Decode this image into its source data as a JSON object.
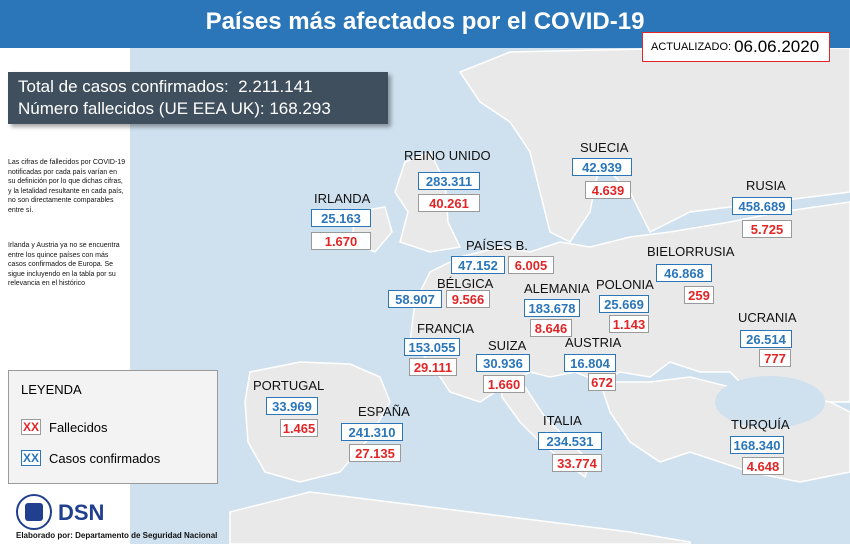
{
  "header": {
    "title": "Países más afectados por el COVID-19",
    "updated_label": "ACTUALIZADO:",
    "updated_date": "06.06.2020"
  },
  "totals": {
    "confirmed_label": "Total de casos confirmados:",
    "confirmed_value": "2.211.141",
    "deaths_label": "Número fallecidos (UE EEA UK):",
    "deaths_value": "168.293"
  },
  "notes": {
    "note1": "Las cifras de fallecidos por COVID-19 notificadas por cada país varían en su definición por lo que dichas cifras, y la letalidad resultante en cada país, no son directamente comparables entre sí.",
    "note2": "Irlanda y Austria ya no se encuentra entre los quince países con más casos confirmados de Europa. Se sigue incluyendo en la tabla por su relevancia en el histórico"
  },
  "legend": {
    "title": "LEYENDA",
    "marker": "XX",
    "deaths_label": "Fallecidos",
    "confirmed_label": "Casos confirmados",
    "colors": {
      "deaths": "#e22526",
      "confirmed": "#2a76b9"
    }
  },
  "countries": {
    "reino_unido": {
      "name": "REINO UNIDO",
      "confirmed": "283.311",
      "deaths": "40.261"
    },
    "irlanda": {
      "name": "IRLANDA",
      "confirmed": "25.163",
      "deaths": "1.670"
    },
    "suecia": {
      "name": "SUECIA",
      "confirmed": "42.939",
      "deaths": "4.639"
    },
    "rusia": {
      "name": "RUSIA",
      "confirmed": "458.689",
      "deaths": "5.725"
    },
    "paises_bajos": {
      "name": "PAÍSES B.",
      "confirmed": "47.152",
      "deaths": "6.005"
    },
    "bielorrusia": {
      "name": "BIELORRUSIA",
      "confirmed": "46.868",
      "deaths": "259"
    },
    "belgica": {
      "name": "BÉLGICA",
      "confirmed": "58.907",
      "deaths": "9.566"
    },
    "alemania": {
      "name": "ALEMANIA",
      "confirmed": "183.678",
      "deaths": "8.646"
    },
    "polonia": {
      "name": "POLONIA",
      "confirmed": "25.669",
      "deaths": "1.143"
    },
    "francia": {
      "name": "FRANCIA",
      "confirmed": "153.055",
      "deaths": "29.111"
    },
    "ucrania": {
      "name": "UCRANIA",
      "confirmed": "26.514",
      "deaths": "777"
    },
    "suiza": {
      "name": "SUIZA",
      "confirmed": "30.936",
      "deaths": "1.660"
    },
    "austria": {
      "name": "AUSTRIA",
      "confirmed": "16.804",
      "deaths": "672"
    },
    "portugal": {
      "name": "PORTUGAL",
      "confirmed": "33.969",
      "deaths": "1.465"
    },
    "espana": {
      "name": "ESPAÑA",
      "confirmed": "241.310",
      "deaths": "27.135"
    },
    "italia": {
      "name": "ITALIA",
      "confirmed": "234.531",
      "deaths": "33.774"
    },
    "turquia": {
      "name": "TURQUÍA",
      "confirmed": "168.340",
      "deaths": "4.648"
    }
  },
  "footer": {
    "logo_text": "DSN",
    "credit": "Elaborado por: Departamento de Seguridad Nacional"
  },
  "colors": {
    "banner": "#2a76b9",
    "sea": "#cfe0ee",
    "land": "#e9e9e9",
    "totals_box": "#3f4f5d",
    "logo": "#213f8f"
  }
}
